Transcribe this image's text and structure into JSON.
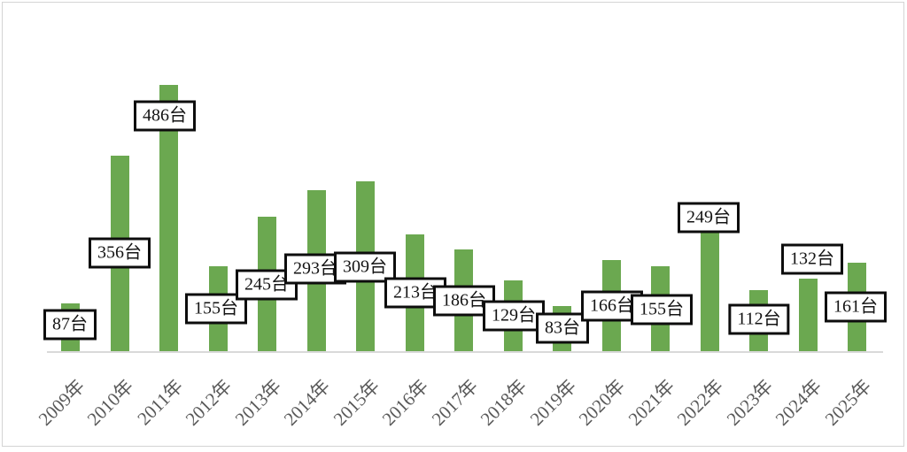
{
  "chart_data": {
    "type": "bar",
    "title": "",
    "xlabel": "",
    "ylabel": "",
    "unit": "台",
    "categories": [
      "2009年",
      "2010年",
      "2011年",
      "2012年",
      "2013年",
      "2014年",
      "2015年",
      "2016年",
      "2017年",
      "2018年",
      "2019年",
      "2020年",
      "2021年",
      "2022年",
      "2023年",
      "2024年",
      "2025年"
    ],
    "values": [
      87,
      356,
      486,
      155,
      245,
      293,
      309,
      213,
      186,
      129,
      83,
      166,
      155,
      249,
      112,
      132,
      161
    ],
    "data_labels": [
      "87台",
      "356台",
      "486台",
      "155台",
      "245台",
      "293台",
      "309台",
      "213台",
      "186台",
      "129台",
      "83台",
      "166台",
      "155台",
      "249台",
      "112台",
      "132台",
      "161台"
    ],
    "legend_position": "none",
    "gridlines": false,
    "y_axis_visible": false,
    "x_axis_visible": true,
    "ylim": [
      0,
      520
    ],
    "colors": {
      "bar_fill": "#6ba850",
      "axis_line": "#d9d9d9",
      "tick_label": "#595959",
      "data_label_text": "#141414",
      "data_label_border": "#0d0d0d",
      "data_label_bg": "#ffffff",
      "frame_border": "#d4d4d4",
      "background": "#ffffff"
    }
  }
}
